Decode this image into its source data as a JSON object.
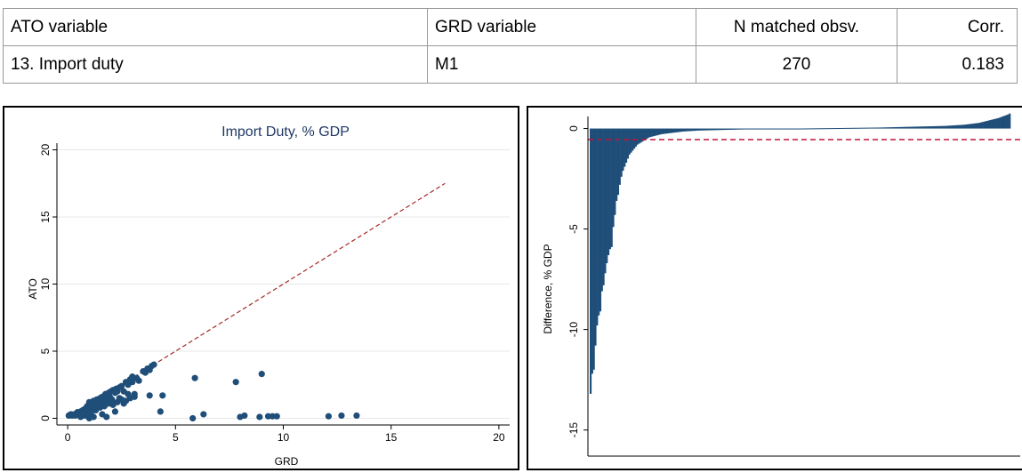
{
  "table": {
    "headers": [
      "ATO variable",
      "GRD variable",
      "N matched obsv.",
      "Corr."
    ],
    "rows": [
      [
        "13. Import duty",
        "M1",
        "270",
        "0.183"
      ]
    ]
  },
  "chart_data": [
    {
      "type": "scatter",
      "title": "Import Duty, % GDP",
      "xlabel": "GRD",
      "ylabel": "ATO",
      "xlim": [
        -0.5,
        20.5
      ],
      "ylim": [
        -0.5,
        20.5
      ],
      "xticks": [
        "0",
        "5",
        "10",
        "15",
        "20"
      ],
      "yticks": [
        "0",
        "5",
        "10",
        "15",
        "20"
      ],
      "grid": true,
      "series": [
        {
          "marker_color": "#1f4e79",
          "points": [
            [
              0.05,
              0.2
            ],
            [
              0.1,
              0.25
            ],
            [
              0.15,
              0.3
            ],
            [
              0.2,
              0.2
            ],
            [
              0.3,
              0.3
            ],
            [
              0.35,
              0.2
            ],
            [
              0.45,
              0.45
            ],
            [
              0.5,
              0.3
            ],
            [
              0.6,
              0.5
            ],
            [
              0.7,
              0.4
            ],
            [
              0.8,
              0.7
            ],
            [
              0.85,
              0.5
            ],
            [
              0.9,
              0.9
            ],
            [
              1.0,
              0.8
            ],
            [
              1.0,
              1.2
            ],
            [
              1.1,
              1.0
            ],
            [
              1.2,
              1.3
            ],
            [
              1.2,
              0.7
            ],
            [
              1.3,
              1.1
            ],
            [
              1.35,
              1.4
            ],
            [
              1.4,
              0.9
            ],
            [
              1.5,
              1.5
            ],
            [
              1.55,
              1.1
            ],
            [
              1.6,
              1.6
            ],
            [
              1.7,
              1.3
            ],
            [
              1.75,
              1.8
            ],
            [
              1.8,
              1.5
            ],
            [
              1.9,
              1.9
            ],
            [
              1.95,
              1.6
            ],
            [
              2.0,
              2.0
            ],
            [
              2.05,
              1.4
            ],
            [
              2.1,
              2.1
            ],
            [
              2.2,
              1.9
            ],
            [
              2.25,
              2.2
            ],
            [
              2.3,
              2.0
            ],
            [
              2.4,
              2.3
            ],
            [
              2.5,
              2.4
            ],
            [
              2.6,
              2.0
            ],
            [
              2.7,
              2.7
            ],
            [
              2.8,
              2.5
            ],
            [
              2.9,
              2.9
            ],
            [
              3.0,
              2.7
            ],
            [
              3.0,
              3.1
            ],
            [
              3.2,
              3.0
            ],
            [
              3.3,
              2.8
            ],
            [
              3.5,
              3.5
            ],
            [
              3.6,
              3.4
            ],
            [
              3.7,
              3.7
            ],
            [
              3.8,
              3.6
            ],
            [
              3.9,
              3.9
            ],
            [
              4.0,
              4.0
            ],
            [
              0.6,
              0.1
            ],
            [
              0.8,
              0.2
            ],
            [
              1.0,
              0.3
            ],
            [
              1.1,
              0.5
            ],
            [
              1.3,
              0.6
            ],
            [
              1.5,
              0.8
            ],
            [
              1.7,
              0.9
            ],
            [
              1.9,
              1.1
            ],
            [
              2.1,
              1.0
            ],
            [
              2.3,
              1.2
            ],
            [
              2.5,
              1.4
            ],
            [
              2.7,
              1.3
            ],
            [
              2.9,
              1.5
            ],
            [
              3.1,
              1.6
            ],
            [
              2.6,
              1.1
            ],
            [
              2.4,
              1.5
            ],
            [
              1.2,
              0.1
            ],
            [
              1.6,
              0.3
            ],
            [
              1.8,
              0.1
            ],
            [
              2.2,
              0.5
            ],
            [
              1.0,
              0.0
            ],
            [
              0.7,
              0.6
            ],
            [
              1.4,
              1.0
            ],
            [
              2.0,
              1.3
            ],
            [
              2.8,
              1.8
            ],
            [
              3.1,
              1.8
            ],
            [
              3.8,
              1.7
            ],
            [
              4.4,
              1.7
            ],
            [
              4.3,
              0.5
            ],
            [
              5.9,
              3.0
            ],
            [
              6.3,
              0.3
            ],
            [
              5.8,
              0.0
            ],
            [
              7.8,
              2.7
            ],
            [
              8.0,
              0.1
            ],
            [
              8.2,
              0.2
            ],
            [
              9.0,
              3.3
            ],
            [
              8.9,
              0.1
            ],
            [
              9.3,
              0.15
            ],
            [
              9.5,
              0.15
            ],
            [
              9.7,
              0.15
            ],
            [
              12.1,
              0.15
            ],
            [
              12.7,
              0.2
            ],
            [
              13.4,
              0.2
            ]
          ]
        },
        {
          "name": "",
          "kind": "reference-line",
          "color": "#a52a2a",
          "from": [
            0,
            0
          ],
          "to": [
            17.5,
            17.5
          ]
        }
      ]
    },
    {
      "type": "bar",
      "title": "",
      "xlabel": "",
      "ylabel": "Difference, % GDP",
      "ylim": [
        -16.3,
        0.6
      ],
      "yticks": [
        "0",
        "-5",
        "-10",
        "-15"
      ],
      "bar_color": "#1f4e79",
      "reference_line": {
        "y": -0.55,
        "color": "#c0143c",
        "style": "dashed"
      },
      "values": [
        -13.2,
        -12.2,
        -12.0,
        -10.8,
        -9.8,
        -9.3,
        -9.1,
        -8.1,
        -7.8,
        -7.2,
        -6.7,
        -6.3,
        -6.0,
        -5.9,
        -4.9,
        -4.3,
        -3.6,
        -3.3,
        -2.8,
        -2.4,
        -2.1,
        -1.9,
        -1.7,
        -1.5,
        -1.3,
        -1.2,
        -1.1,
        -1.0,
        -0.9,
        -0.8,
        -0.75,
        -0.7,
        -0.65,
        -0.6,
        -0.55,
        -0.5,
        -0.45,
        -0.42,
        -0.4,
        -0.38,
        -0.36,
        -0.34,
        -0.32,
        -0.3,
        -0.28,
        -0.27,
        -0.26,
        -0.25,
        -0.24,
        -0.23,
        -0.22,
        -0.21,
        -0.2,
        -0.19,
        -0.18,
        -0.17,
        -0.16,
        -0.15,
        -0.145,
        -0.14,
        -0.135,
        -0.13,
        -0.125,
        -0.12,
        -0.115,
        -0.11,
        -0.105,
        -0.1,
        -0.098,
        -0.096,
        -0.094,
        -0.092,
        -0.09,
        -0.088,
        -0.086,
        -0.084,
        -0.082,
        -0.08,
        -0.078,
        -0.076,
        -0.074,
        -0.072,
        -0.07,
        -0.068,
        -0.066,
        -0.064,
        -0.062,
        -0.06,
        -0.058,
        -0.056,
        -0.054,
        -0.052,
        -0.05,
        -0.048,
        -0.046,
        -0.044,
        -0.042,
        -0.04,
        -0.038,
        -0.036,
        -0.034,
        -0.032,
        -0.03,
        -0.028,
        -0.026,
        -0.024,
        -0.022,
        -0.02,
        -0.018,
        -0.016,
        -0.014,
        -0.012,
        -0.01,
        -0.009,
        -0.008,
        -0.007,
        -0.006,
        -0.005,
        -0.004,
        -0.003,
        -0.002,
        -0.001,
        0.0,
        0.0,
        0.0,
        0.0,
        0.0,
        0.0,
        0.0,
        0.0,
        0.001,
        0.002,
        0.003,
        0.004,
        0.005,
        0.006,
        0.007,
        0.008,
        0.009,
        0.01,
        0.011,
        0.012,
        0.013,
        0.014,
        0.015,
        0.016,
        0.017,
        0.018,
        0.019,
        0.02,
        0.021,
        0.022,
        0.023,
        0.024,
        0.025,
        0.026,
        0.027,
        0.028,
        0.029,
        0.03,
        0.031,
        0.032,
        0.033,
        0.034,
        0.035,
        0.036,
        0.037,
        0.038,
        0.039,
        0.04,
        0.041,
        0.042,
        0.043,
        0.044,
        0.045,
        0.046,
        0.047,
        0.048,
        0.049,
        0.05,
        0.052,
        0.054,
        0.056,
        0.058,
        0.06,
        0.062,
        0.064,
        0.066,
        0.068,
        0.07,
        0.072,
        0.074,
        0.076,
        0.078,
        0.08,
        0.082,
        0.084,
        0.086,
        0.088,
        0.09,
        0.092,
        0.094,
        0.096,
        0.098,
        0.1,
        0.102,
        0.104,
        0.106,
        0.108,
        0.11,
        0.112,
        0.114,
        0.116,
        0.118,
        0.12,
        0.122,
        0.124,
        0.126,
        0.128,
        0.13,
        0.135,
        0.14,
        0.145,
        0.15,
        0.155,
        0.16,
        0.165,
        0.17,
        0.175,
        0.18,
        0.185,
        0.19,
        0.2,
        0.21,
        0.22,
        0.23,
        0.24,
        0.25,
        0.26,
        0.27,
        0.28,
        0.3,
        0.32,
        0.34,
        0.36,
        0.38,
        0.4,
        0.42,
        0.44,
        0.46,
        0.48,
        0.5,
        0.52,
        0.55,
        0.58,
        0.61,
        0.64,
        0.67,
        0.7,
        0.75
      ]
    }
  ]
}
